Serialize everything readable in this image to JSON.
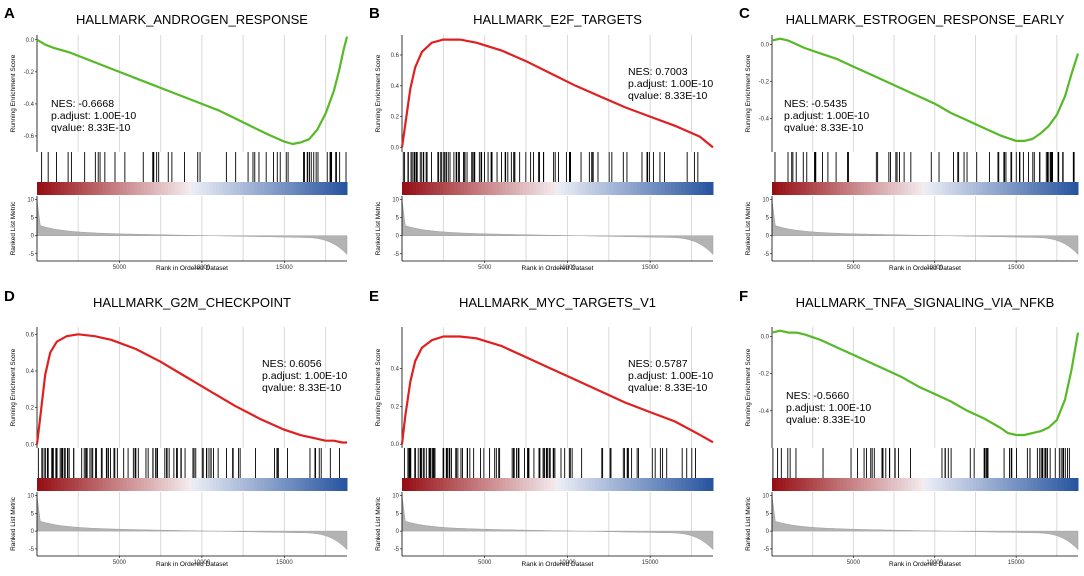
{
  "figure": {
    "rank_max": 18800,
    "vline_positions": [
      2500,
      5000,
      7500,
      10000,
      12500,
      15000,
      17500
    ]
  },
  "chart_data": [
    {
      "type": "line",
      "panel": "A",
      "title": "HALLMARK_ANDROGEN_RESPONSE",
      "ylabel": "Running Enrichment Score",
      "xlabel": "Rank in Ordered Dataset",
      "ylabel2": "Ranked List Metric",
      "nes": "NES: -0.6668",
      "padj": "p.adjust: 1.00E-10",
      "qval": "qvalue: 8.33E-10",
      "stats_position": "bottom-left",
      "color": "#56b927",
      "ylim": [
        -0.7,
        0.03
      ],
      "yticks": [
        0.0,
        -0.2,
        -0.4,
        -0.6
      ],
      "ytick_labels": [
        "0.0",
        "-0.2",
        "-0.4",
        "-0.6"
      ],
      "xticks": [
        5000,
        10000,
        15000
      ],
      "xtick_labels": [
        "5000",
        "10000",
        "15000"
      ],
      "metric_ticks": [
        10,
        5,
        0,
        -5
      ],
      "metric_tick_labels": [
        "10",
        "5",
        "0",
        "-5"
      ],
      "curve_x": [
        0,
        500,
        1000,
        2000,
        3000,
        4000,
        5000,
        6000,
        7000,
        8000,
        9000,
        10000,
        11000,
        12000,
        13000,
        14000,
        15000,
        15500,
        16000,
        16500,
        17000,
        17500,
        18000,
        18300,
        18600,
        18800
      ],
      "curve_y": [
        0.0,
        -0.03,
        -0.05,
        -0.08,
        -0.12,
        -0.16,
        -0.2,
        -0.24,
        -0.28,
        -0.32,
        -0.36,
        -0.4,
        -0.44,
        -0.49,
        -0.54,
        -0.59,
        -0.635,
        -0.65,
        -0.64,
        -0.62,
        -0.56,
        -0.46,
        -0.32,
        -0.2,
        -0.06,
        0.02
      ],
      "hit_regions": [
        [
          0,
          300,
          0.25
        ],
        [
          300,
          2300,
          0.35
        ],
        [
          2300,
          7000,
          0.3
        ],
        [
          7000,
          13000,
          0.4
        ],
        [
          13000,
          16000,
          0.55
        ],
        [
          16000,
          18800,
          1.3
        ]
      ]
    },
    {
      "type": "line",
      "panel": "B",
      "title": "HALLMARK_E2F_TARGETS",
      "ylabel": "Running Enrichment Score",
      "xlabel": "Rank in Ordered Dataset",
      "ylabel2": "Ranked List Metric",
      "nes": "NES: 0.7003",
      "padj": "p.adjust: 1.00E-10",
      "qval": "qvalue: 8.33E-10",
      "stats_position": "top-right",
      "color": "#e02020",
      "ylim": [
        -0.03,
        0.73
      ],
      "yticks": [
        0.0,
        0.2,
        0.4,
        0.6
      ],
      "ytick_labels": [
        "0.0",
        "0.2",
        "0.4",
        "0.6"
      ],
      "xticks": [
        5000,
        10000,
        15000
      ],
      "xtick_labels": [
        "5000",
        "10000",
        "15000"
      ],
      "metric_ticks": [
        10,
        5,
        0,
        -5
      ],
      "metric_tick_labels": [
        "10",
        "5",
        "0",
        "-5"
      ],
      "curve_x": [
        0,
        200,
        500,
        800,
        1200,
        1800,
        2500,
        3500,
        4500,
        6000,
        7500,
        9000,
        10500,
        12000,
        13500,
        15000,
        16500,
        18000,
        18800
      ],
      "curve_y": [
        0.0,
        0.15,
        0.38,
        0.52,
        0.62,
        0.68,
        0.7,
        0.7,
        0.68,
        0.63,
        0.56,
        0.48,
        0.4,
        0.33,
        0.26,
        0.2,
        0.14,
        0.07,
        0.0
      ],
      "hit_regions": [
        [
          0,
          4000,
          2.0
        ],
        [
          4000,
          9000,
          1.1
        ],
        [
          9000,
          14000,
          0.65
        ],
        [
          14000,
          17000,
          0.45
        ],
        [
          17000,
          18800,
          0.3
        ]
      ]
    },
    {
      "type": "line",
      "panel": "C",
      "title": "HALLMARK_ESTROGEN_RESPONSE_EARLY",
      "ylabel": "Running Enrichment Score",
      "xlabel": "Rank in Ordered Dataset",
      "ylabel2": "Ranked List Metric",
      "nes": "NES: -0.5435",
      "padj": "p.adjust: 1.00E-10",
      "qval": "qvalue: 8.33E-10",
      "stats_position": "middle-left",
      "color": "#56b927",
      "ylim": [
        -0.58,
        0.05
      ],
      "yticks": [
        0.0,
        -0.2,
        -0.4
      ],
      "ytick_labels": [
        "0.0",
        "-0.2",
        "-0.4"
      ],
      "xticks": [
        5000,
        10000,
        15000
      ],
      "xtick_labels": [
        "5000",
        "10000",
        "15000"
      ],
      "metric_ticks": [
        10,
        5,
        0,
        -5
      ],
      "metric_tick_labels": [
        "10",
        "5",
        "0",
        "-5"
      ],
      "curve_x": [
        0,
        500,
        1000,
        1500,
        2000,
        3000,
        4000,
        5000,
        6000,
        7000,
        8000,
        9000,
        10000,
        11000,
        12000,
        13000,
        14000,
        15000,
        15500,
        16000,
        16500,
        17000,
        17500,
        18000,
        18400,
        18800
      ],
      "curve_y": [
        0.02,
        0.03,
        0.02,
        0.0,
        -0.02,
        -0.05,
        -0.08,
        -0.12,
        -0.16,
        -0.2,
        -0.24,
        -0.28,
        -0.32,
        -0.37,
        -0.41,
        -0.45,
        -0.49,
        -0.52,
        -0.52,
        -0.51,
        -0.48,
        -0.44,
        -0.38,
        -0.28,
        -0.16,
        -0.05
      ],
      "hit_regions": [
        [
          0,
          2500,
          0.5
        ],
        [
          2500,
          10000,
          0.45
        ],
        [
          10000,
          16000,
          0.6
        ],
        [
          16000,
          18800,
          1.4
        ]
      ]
    },
    {
      "type": "line",
      "panel": "D",
      "title": "HALLMARK_G2M_CHECKPOINT",
      "ylabel": "Running Enrichment Score",
      "xlabel": "Rank in Ordered Dataset",
      "ylabel2": "Ranked List Metric",
      "nes": "NES: 0.6056",
      "padj": "p.adjust: 1.00E-10",
      "qval": "qvalue: 8.33E-10",
      "stats_position": "top-right",
      "color": "#e02020",
      "ylim": [
        -0.02,
        0.64
      ],
      "yticks": [
        0.0,
        0.2,
        0.4,
        0.6
      ],
      "ytick_labels": [
        "0.0",
        "0.2",
        "0.4",
        "0.6"
      ],
      "xticks": [
        5000,
        10000,
        15000
      ],
      "xtick_labels": [
        "5000",
        "10000",
        "15000"
      ],
      "metric_ticks": [
        10,
        5,
        0,
        -5
      ],
      "metric_tick_labels": [
        "10",
        "5",
        "0",
        "-5"
      ],
      "curve_x": [
        0,
        200,
        500,
        800,
        1200,
        1800,
        2500,
        3500,
        4500,
        6000,
        7500,
        9000,
        10500,
        12000,
        13500,
        15000,
        16000,
        17000,
        17500,
        18000,
        18500,
        18800
      ],
      "curve_y": [
        0.0,
        0.15,
        0.38,
        0.5,
        0.56,
        0.59,
        0.6,
        0.59,
        0.57,
        0.52,
        0.45,
        0.37,
        0.29,
        0.21,
        0.14,
        0.08,
        0.05,
        0.03,
        0.02,
        0.02,
        0.01,
        0.01
      ],
      "hit_regions": [
        [
          0,
          4000,
          2.0
        ],
        [
          4000,
          9000,
          1.1
        ],
        [
          9000,
          14000,
          0.7
        ],
        [
          14000,
          17000,
          0.5
        ],
        [
          17000,
          18800,
          0.4
        ]
      ]
    },
    {
      "type": "line",
      "panel": "E",
      "title": "HALLMARK_MYC_TARGETS_V1",
      "ylabel": "Running Enrichment Score",
      "xlabel": "Rank in Ordered Dataset",
      "ylabel2": "Ranked List Metric",
      "nes": "NES: 0.5787",
      "padj": "p.adjust: 1.00E-10",
      "qval": "qvalue: 8.33E-10",
      "stats_position": "top-right",
      "color": "#e02020",
      "ylim": [
        -0.02,
        0.62
      ],
      "yticks": [
        0.0,
        0.2,
        0.4
      ],
      "ytick_labels": [
        "0.0",
        "0.2",
        "0.4"
      ],
      "xticks": [
        5000,
        10000,
        15000
      ],
      "xtick_labels": [
        "5000",
        "10000",
        "15000"
      ],
      "metric_ticks": [
        10,
        5,
        0,
        -5
      ],
      "metric_tick_labels": [
        "10",
        "5",
        "0",
        "-5"
      ],
      "curve_x": [
        0,
        200,
        500,
        800,
        1200,
        1800,
        2500,
        3500,
        4500,
        6000,
        7500,
        9000,
        10500,
        12000,
        13500,
        15000,
        16500,
        18000,
        18800
      ],
      "curve_y": [
        0.0,
        0.15,
        0.33,
        0.44,
        0.51,
        0.55,
        0.57,
        0.57,
        0.56,
        0.52,
        0.46,
        0.4,
        0.34,
        0.28,
        0.22,
        0.17,
        0.12,
        0.05,
        0.01
      ],
      "hit_regions": [
        [
          0,
          4000,
          2.0
        ],
        [
          4000,
          9000,
          1.1
        ],
        [
          9000,
          14000,
          0.7
        ],
        [
          14000,
          17000,
          0.5
        ],
        [
          17000,
          18800,
          0.35
        ]
      ]
    },
    {
      "type": "line",
      "panel": "F",
      "title": "HALLMARK_TNFA_SIGNALING_VIA_NFKB",
      "ylabel": "Running Enrichment Score",
      "xlabel": "Rank in Ordered Dataset",
      "ylabel2": "Ranked List Metric",
      "nes": "NES: -0.5660",
      "padj": "p.adjust: 1.00E-10",
      "qval": "qvalue: 8.33E-10",
      "stats_position": "bottom-left",
      "color": "#56b927",
      "ylim": [
        -0.6,
        0.05
      ],
      "yticks": [
        0.0,
        -0.2,
        -0.4
      ],
      "ytick_labels": [
        "0.0",
        "-0.2",
        "-0.4"
      ],
      "xticks": [
        5000,
        10000,
        15000
      ],
      "xtick_labels": [
        "5000",
        "10000",
        "15000"
      ],
      "metric_ticks": [
        10,
        5,
        0,
        -5
      ],
      "metric_tick_labels": [
        "10",
        "5",
        "0",
        "-5"
      ],
      "curve_x": [
        0,
        500,
        1000,
        1500,
        2000,
        3000,
        4000,
        5000,
        6000,
        7000,
        8000,
        9000,
        10000,
        11000,
        12000,
        13000,
        14000,
        14500,
        15000,
        15500,
        16000,
        16500,
        17000,
        17500,
        18000,
        18400,
        18800
      ],
      "curve_y": [
        0.02,
        0.03,
        0.02,
        0.02,
        0.01,
        -0.02,
        -0.06,
        -0.1,
        -0.14,
        -0.18,
        -0.22,
        -0.27,
        -0.31,
        -0.35,
        -0.4,
        -0.44,
        -0.49,
        -0.52,
        -0.53,
        -0.53,
        -0.52,
        -0.51,
        -0.49,
        -0.45,
        -0.34,
        -0.18,
        0.02
      ],
      "hit_regions": [
        [
          0,
          2500,
          0.45
        ],
        [
          2500,
          10000,
          0.45
        ],
        [
          10000,
          16000,
          0.6
        ],
        [
          16000,
          18800,
          1.3
        ]
      ]
    }
  ]
}
